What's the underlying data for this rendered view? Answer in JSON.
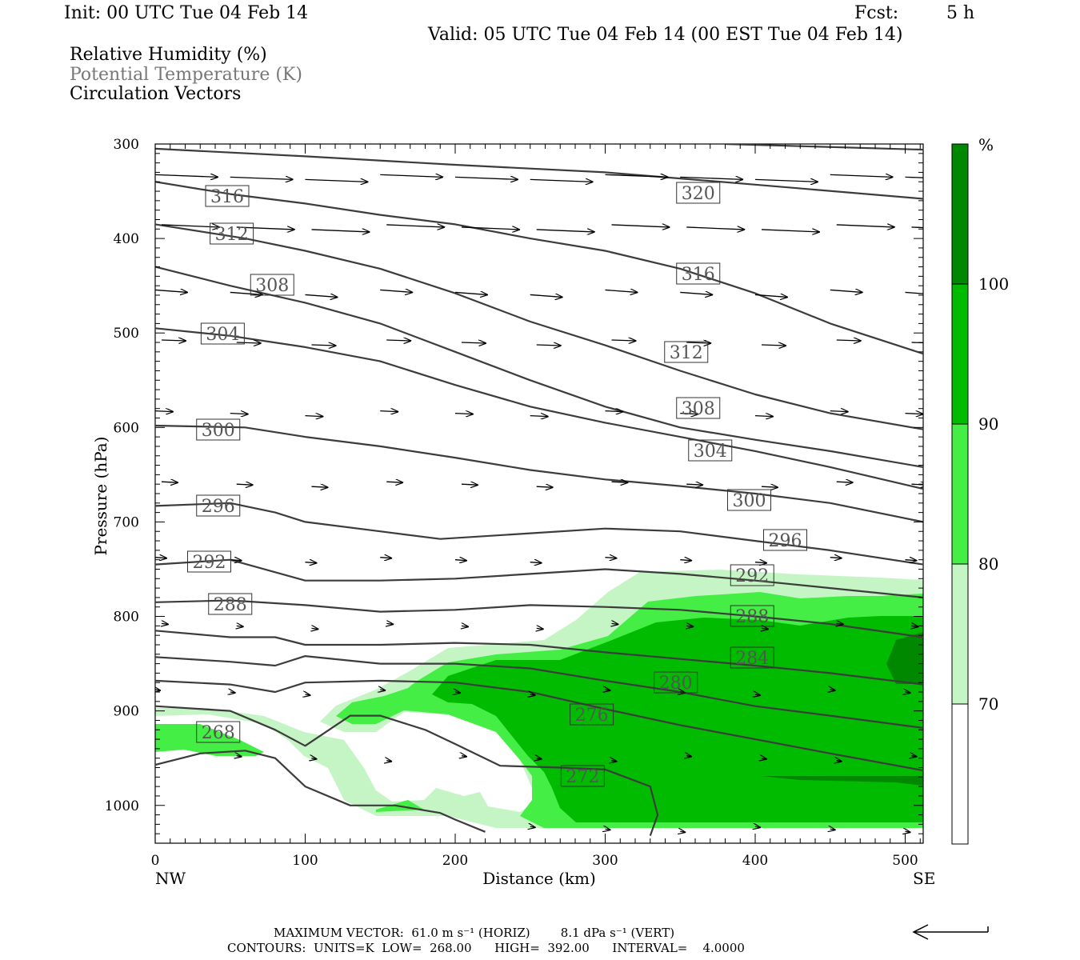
{
  "header": {
    "init": "Init: 00 UTC Tue 04 Feb 14",
    "fcst_label": "Fcst:",
    "fcst_value": "5 h",
    "valid": "Valid: 05 UTC Tue 04 Feb 14 (00 EST Tue 04 Feb 14)"
  },
  "legend_lines": {
    "rh": "Relative Humidity (%)",
    "theta": "Potential Temperature (K)",
    "vectors": "Circulation Vectors"
  },
  "footer": {
    "max_vector": "MAXIMUM VECTOR:  61.0 m s⁻¹ (HORIZ)        8.1 dPa s⁻¹ (VERT)",
    "contours": "CONTOURS:  UNITS=K  LOW=  268.00      HIGH=  392.00      INTERVAL=    4.0000"
  },
  "colors": {
    "rh_70": "#c5f5c5",
    "rh_80": "#44ee44",
    "rh_90": "#00bb00",
    "rh_100": "#008800",
    "contour": "#3c3c3c"
  },
  "chart_data": {
    "type": "cross-section",
    "xlabel": "Distance (km)",
    "ylabel": "Pressure (hPa)",
    "xlim": [
      0,
      512
    ],
    "ylim": [
      1040,
      300
    ],
    "y_scale": "linear (inverted)",
    "x_ticks": [
      "0",
      "100",
      "200",
      "300",
      "400",
      "500"
    ],
    "y_ticks": [
      "300",
      "400",
      "500",
      "600",
      "700",
      "800",
      "900",
      "1000"
    ],
    "x_end_labels": {
      "left": "NW",
      "right": "SE"
    },
    "colorbar": {
      "unit": "%",
      "levels": [
        70,
        80,
        90,
        100
      ],
      "labels": [
        "70",
        "80",
        "90",
        "100"
      ]
    },
    "contour_label_values": [
      "320",
      "316",
      "316",
      "312",
      "312",
      "308",
      "308",
      "304",
      "304",
      "300",
      "300",
      "296",
      "296",
      "292",
      "292",
      "288",
      "288",
      "284",
      "280",
      "276",
      "272",
      "268"
    ],
    "theta_contours": [
      {
        "value": 320,
        "points": [
          [
            0,
            305
          ],
          [
            100,
            313
          ],
          [
            200,
            322
          ],
          [
            300,
            330
          ],
          [
            400,
            343
          ],
          [
            512,
            358
          ]
        ]
      },
      {
        "value": 316,
        "points": [
          [
            0,
            340
          ],
          [
            50,
            353
          ],
          [
            100,
            363
          ],
          [
            150,
            375
          ],
          [
            200,
            385
          ],
          [
            250,
            400
          ],
          [
            300,
            413
          ],
          [
            350,
            432
          ],
          [
            400,
            458
          ],
          [
            450,
            490
          ],
          [
            512,
            522
          ]
        ]
      },
      {
        "value": 312,
        "points": [
          [
            0,
            385
          ],
          [
            60,
            400
          ],
          [
            100,
            413
          ],
          [
            150,
            432
          ],
          [
            200,
            458
          ],
          [
            250,
            488
          ],
          [
            300,
            513
          ],
          [
            350,
            540
          ],
          [
            400,
            565
          ],
          [
            450,
            585
          ],
          [
            512,
            602
          ]
        ]
      },
      {
        "value": 308,
        "points": [
          [
            0,
            430
          ],
          [
            50,
            450
          ],
          [
            100,
            468
          ],
          [
            150,
            490
          ],
          [
            200,
            520
          ],
          [
            250,
            550
          ],
          [
            300,
            578
          ],
          [
            350,
            600
          ],
          [
            400,
            613
          ],
          [
            450,
            625
          ],
          [
            512,
            642
          ]
        ]
      },
      {
        "value": 304,
        "points": [
          [
            0,
            495
          ],
          [
            50,
            503
          ],
          [
            100,
            515
          ],
          [
            150,
            530
          ],
          [
            200,
            555
          ],
          [
            250,
            578
          ],
          [
            300,
            595
          ],
          [
            350,
            610
          ],
          [
            400,
            625
          ],
          [
            450,
            642
          ],
          [
            512,
            665
          ]
        ]
      },
      {
        "value": 300,
        "points": [
          [
            0,
            598
          ],
          [
            60,
            600
          ],
          [
            100,
            610
          ],
          [
            150,
            620
          ],
          [
            200,
            632
          ],
          [
            250,
            645
          ],
          [
            300,
            655
          ],
          [
            350,
            662
          ],
          [
            400,
            670
          ],
          [
            450,
            680
          ],
          [
            512,
            700
          ]
        ]
      },
      {
        "value": 296,
        "points": [
          [
            0,
            683
          ],
          [
            50,
            680
          ],
          [
            80,
            690
          ],
          [
            100,
            700
          ],
          [
            150,
            710
          ],
          [
            190,
            718
          ],
          [
            250,
            712
          ],
          [
            300,
            707
          ],
          [
            350,
            710
          ],
          [
            400,
            720
          ],
          [
            450,
            730
          ],
          [
            512,
            745
          ]
        ]
      },
      {
        "value": 292,
        "points": [
          [
            0,
            745
          ],
          [
            50,
            740
          ],
          [
            100,
            762
          ],
          [
            150,
            762
          ],
          [
            200,
            760
          ],
          [
            250,
            755
          ],
          [
            300,
            750
          ],
          [
            350,
            755
          ],
          [
            400,
            762
          ],
          [
            450,
            770
          ],
          [
            512,
            780
          ]
        ]
      },
      {
        "value": 288,
        "points": [
          [
            0,
            785
          ],
          [
            50,
            783
          ],
          [
            100,
            788
          ],
          [
            150,
            795
          ],
          [
            200,
            793
          ],
          [
            250,
            788
          ],
          [
            300,
            790
          ],
          [
            350,
            793
          ],
          [
            400,
            800
          ],
          [
            450,
            808
          ],
          [
            512,
            822
          ]
        ]
      },
      {
        "value": 284,
        "points": [
          [
            0,
            815
          ],
          [
            50,
            822
          ],
          [
            80,
            822
          ],
          [
            100,
            830
          ],
          [
            150,
            830
          ],
          [
            200,
            828
          ],
          [
            250,
            830
          ],
          [
            300,
            838
          ],
          [
            350,
            845
          ],
          [
            400,
            852
          ],
          [
            450,
            860
          ],
          [
            512,
            872
          ]
        ]
      },
      {
        "value": 280,
        "points": [
          [
            0,
            843
          ],
          [
            50,
            848
          ],
          [
            80,
            852
          ],
          [
            100,
            842
          ],
          [
            150,
            850
          ],
          [
            200,
            850
          ],
          [
            250,
            855
          ],
          [
            300,
            868
          ],
          [
            350,
            880
          ],
          [
            400,
            895
          ],
          [
            450,
            905
          ],
          [
            512,
            918
          ]
        ]
      },
      {
        "value": 276,
        "points": [
          [
            0,
            868
          ],
          [
            50,
            872
          ],
          [
            80,
            880
          ],
          [
            100,
            870
          ],
          [
            150,
            868
          ],
          [
            200,
            870
          ],
          [
            250,
            880
          ],
          [
            300,
            898
          ],
          [
            350,
            915
          ],
          [
            400,
            930
          ],
          [
            450,
            945
          ],
          [
            512,
            963
          ]
        ]
      },
      {
        "value": 272,
        "points": [
          [
            0,
            895
          ],
          [
            50,
            900
          ],
          [
            80,
            920
          ],
          [
            100,
            937
          ],
          [
            130,
            905
          ],
          [
            150,
            905
          ],
          [
            180,
            920
          ],
          [
            200,
            935
          ],
          [
            230,
            958
          ],
          [
            270,
            960
          ],
          [
            300,
            962
          ],
          [
            330,
            980
          ],
          [
            335,
            1010
          ],
          [
            330,
            1032
          ]
        ]
      },
      {
        "value": 268,
        "points": [
          [
            0,
            957
          ],
          [
            30,
            945
          ],
          [
            60,
            942
          ],
          [
            80,
            950
          ],
          [
            100,
            980
          ],
          [
            130,
            1000
          ],
          [
            160,
            1000
          ],
          [
            190,
            1008
          ],
          [
            200,
            1015
          ],
          [
            220,
            1028
          ]
        ]
      }
    ]
  }
}
